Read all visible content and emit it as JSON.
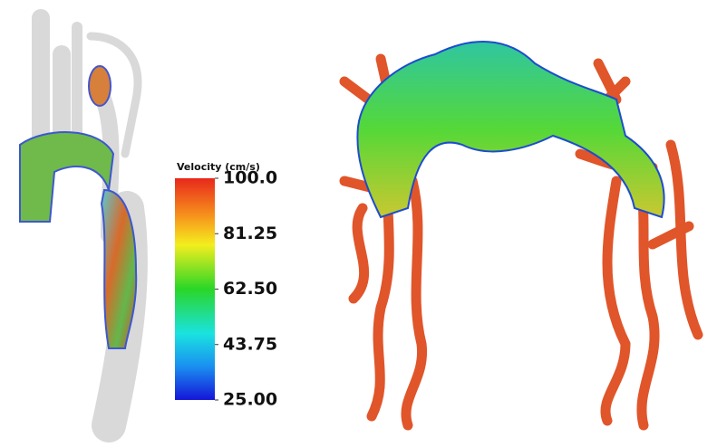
{
  "colorbar": {
    "title": "Velocity (cm/s)",
    "range": [
      25,
      100
    ],
    "ticks": [
      {
        "value": 100,
        "label": "100.0"
      },
      {
        "value": 81.25,
        "label": "81.25"
      },
      {
        "value": 62.5,
        "label": "62.50"
      },
      {
        "value": 43.75,
        "label": "43.75"
      },
      {
        "value": 25,
        "label": "25.00"
      }
    ]
  }
}
